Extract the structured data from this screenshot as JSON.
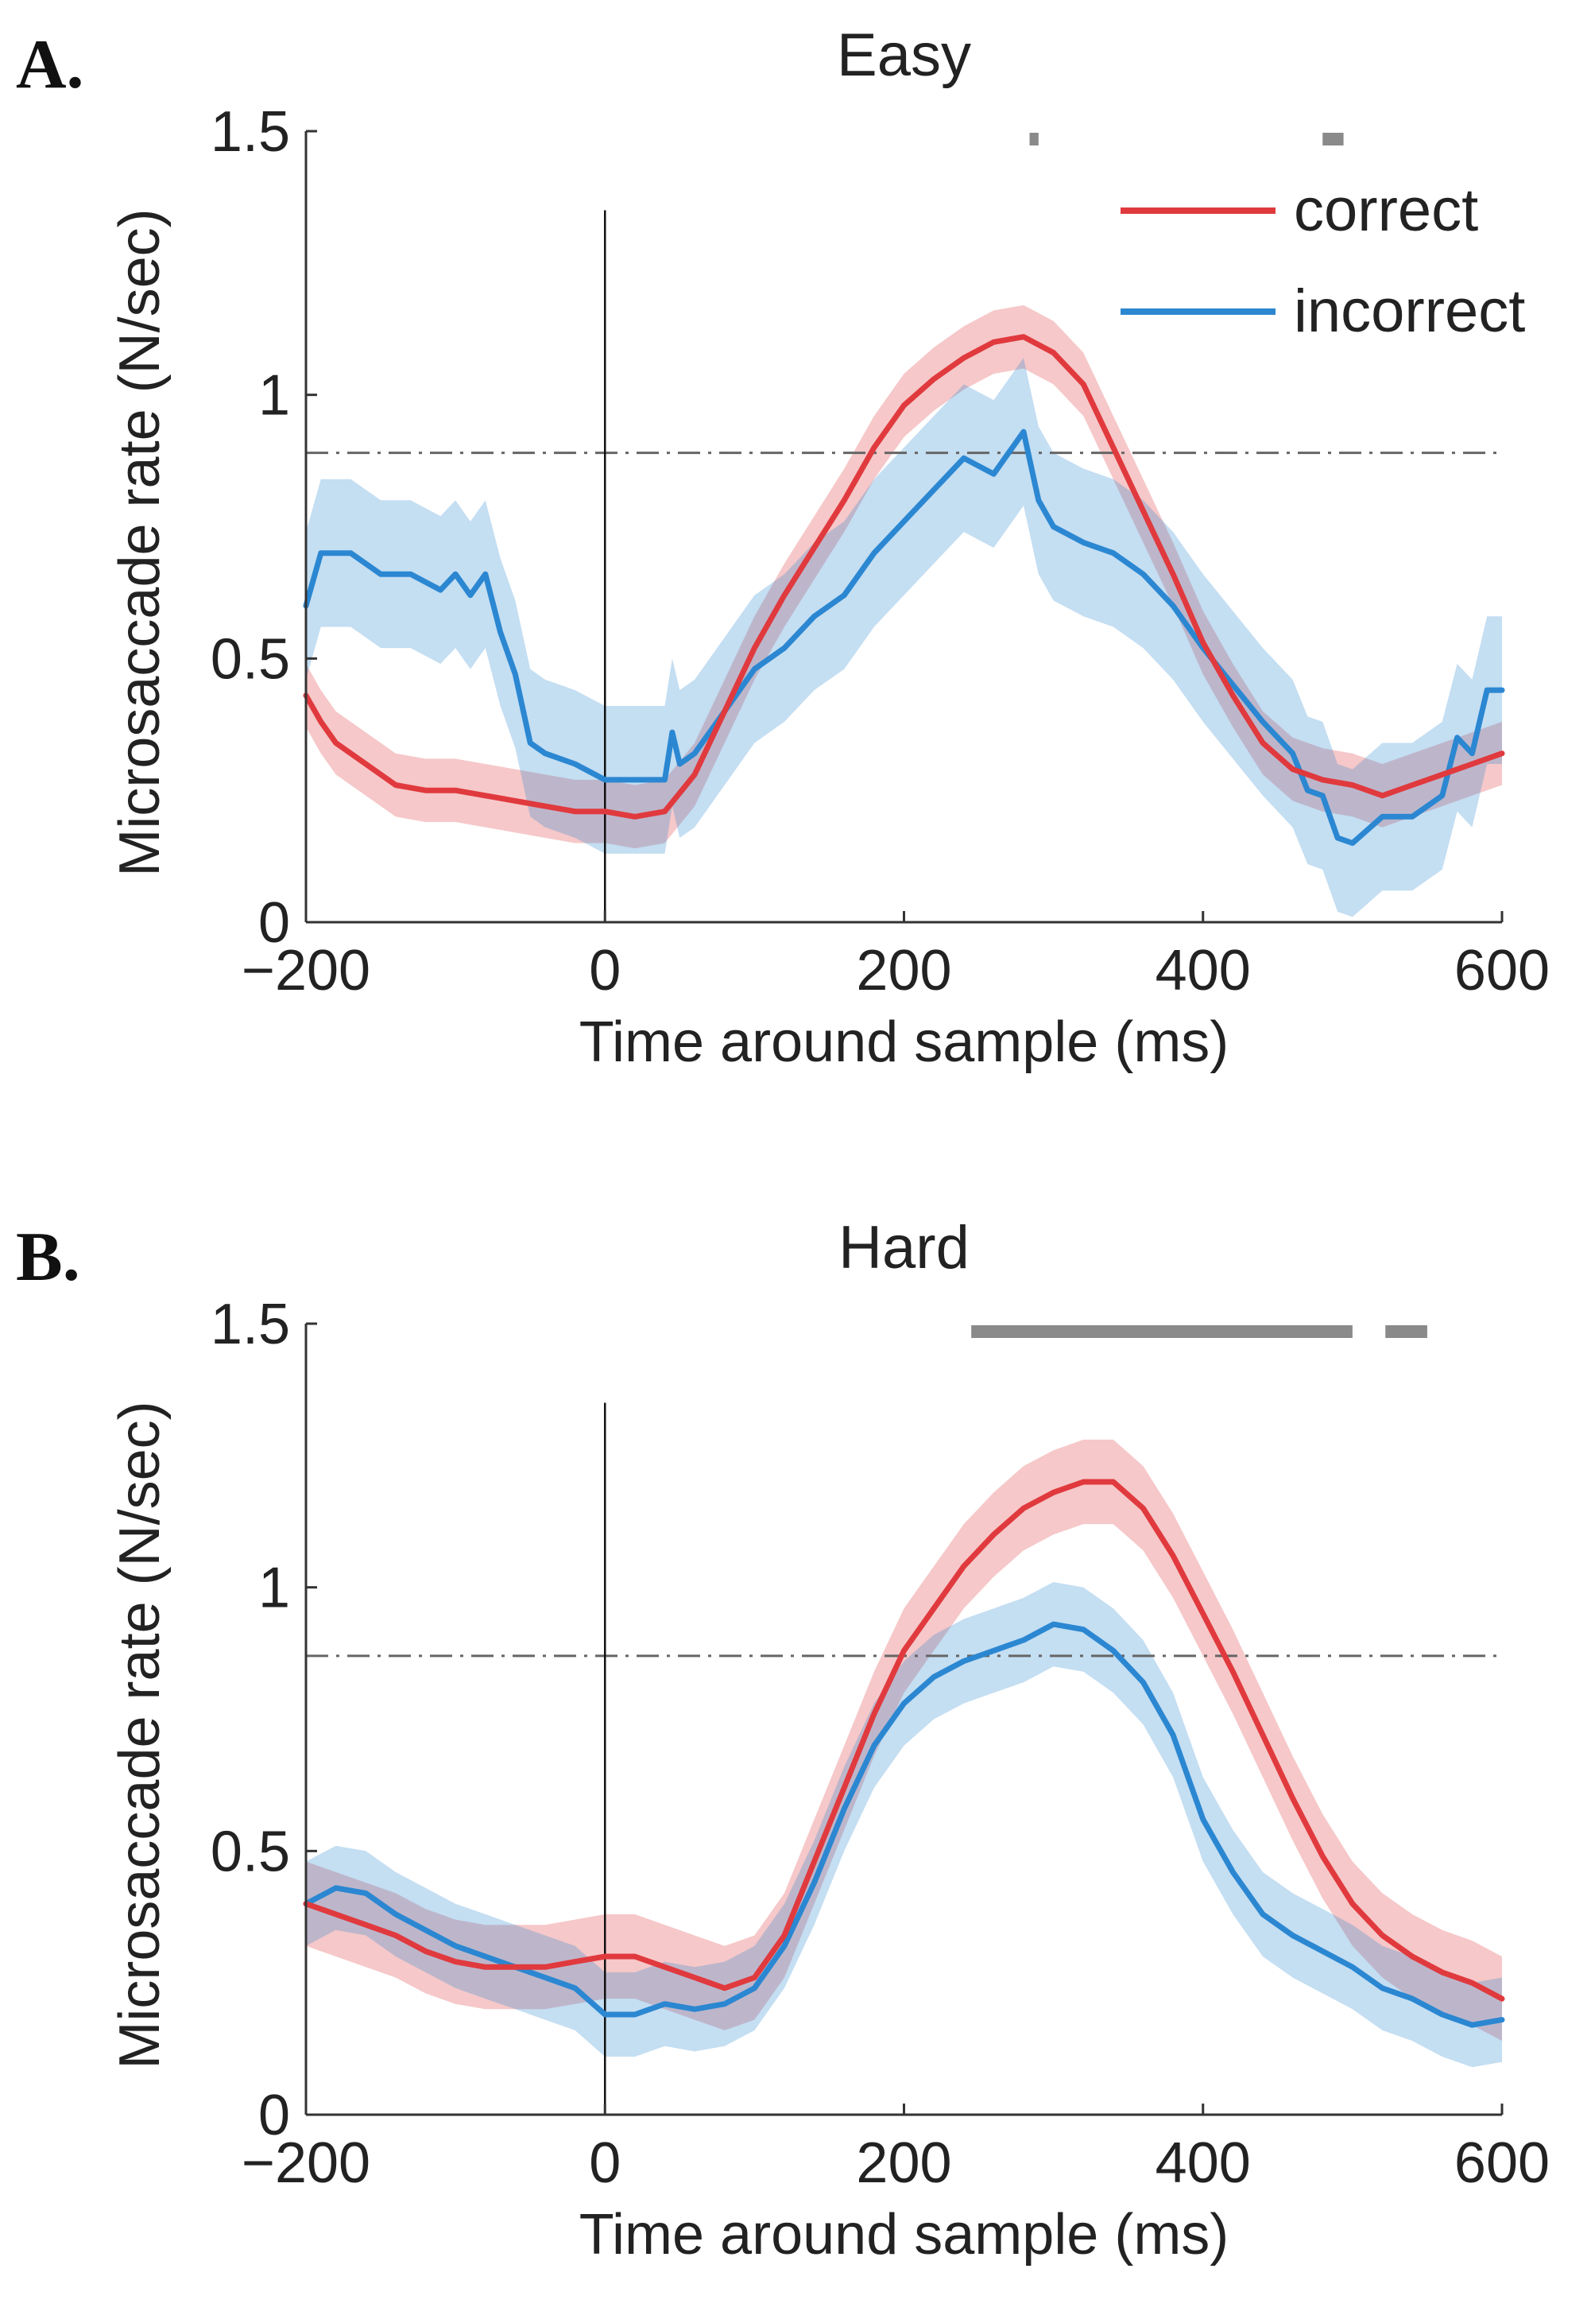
{
  "colors": {
    "correct": "#e03a3e",
    "incorrect": "#2b87d1",
    "significance": "#8a8a8a",
    "reference": "#666666",
    "axis": "#333333"
  },
  "chart_data": [
    {
      "panel_letter": "A.",
      "type": "line",
      "title": "Easy",
      "xlabel": "Time around sample (ms)",
      "ylabel": "Microsaccade rate (N/sec)",
      "xlim": [
        -200,
        600
      ],
      "ylim": [
        0,
        1.5
      ],
      "xticks": [
        -200,
        0,
        200,
        400,
        600
      ],
      "xtick_labels": [
        "−200",
        "0",
        "200",
        "400",
        "600"
      ],
      "yticks": [
        0,
        0.5,
        1,
        1.5
      ],
      "ytick_labels": [
        "0",
        "0.5",
        "1",
        "1.5"
      ],
      "reference_line_y": 0.89,
      "stimulus_line_x": 0,
      "significance_bars": [
        [
          284,
          290
        ],
        [
          480,
          494
        ]
      ],
      "legend": {
        "location": "top-right",
        "entries": [
          "correct",
          "incorrect"
        ]
      },
      "series": [
        {
          "name": "correct",
          "x": [
            -200,
            -190,
            -180,
            -160,
            -140,
            -120,
            -100,
            -80,
            -60,
            -40,
            -20,
            0,
            20,
            40,
            60,
            80,
            100,
            120,
            140,
            160,
            180,
            200,
            220,
            240,
            260,
            280,
            300,
            320,
            340,
            360,
            380,
            400,
            420,
            440,
            460,
            480,
            500,
            520,
            540,
            560,
            580,
            600
          ],
          "y": [
            0.43,
            0.38,
            0.34,
            0.3,
            0.26,
            0.25,
            0.25,
            0.24,
            0.23,
            0.22,
            0.21,
            0.21,
            0.2,
            0.21,
            0.28,
            0.4,
            0.52,
            0.62,
            0.71,
            0.8,
            0.9,
            0.98,
            1.03,
            1.07,
            1.1,
            1.11,
            1.08,
            1.02,
            0.9,
            0.78,
            0.66,
            0.53,
            0.43,
            0.34,
            0.29,
            0.27,
            0.26,
            0.24,
            0.26,
            0.28,
            0.3,
            0.32
          ],
          "band_half_width": 0.06
        },
        {
          "name": "incorrect",
          "x": [
            -200,
            -190,
            -180,
            -170,
            -150,
            -130,
            -110,
            -100,
            -90,
            -80,
            -70,
            -60,
            -50,
            -40,
            -20,
            0,
            20,
            40,
            45,
            50,
            60,
            80,
            100,
            120,
            140,
            160,
            180,
            200,
            220,
            240,
            260,
            280,
            290,
            300,
            320,
            340,
            360,
            380,
            400,
            420,
            440,
            460,
            470,
            480,
            490,
            500,
            520,
            540,
            560,
            570,
            580,
            590,
            600
          ],
          "y": [
            0.6,
            0.7,
            0.7,
            0.7,
            0.66,
            0.66,
            0.63,
            0.66,
            0.62,
            0.66,
            0.55,
            0.47,
            0.34,
            0.32,
            0.3,
            0.27,
            0.27,
            0.27,
            0.36,
            0.3,
            0.32,
            0.4,
            0.48,
            0.52,
            0.58,
            0.62,
            0.7,
            0.76,
            0.82,
            0.88,
            0.85,
            0.93,
            0.8,
            0.75,
            0.72,
            0.7,
            0.66,
            0.6,
            0.52,
            0.45,
            0.38,
            0.32,
            0.25,
            0.24,
            0.16,
            0.15,
            0.2,
            0.2,
            0.24,
            0.35,
            0.32,
            0.44,
            0.44
          ],
          "band_half_width": 0.14
        }
      ]
    },
    {
      "panel_letter": "B.",
      "type": "line",
      "title": "Hard",
      "xlabel": "Time around sample (ms)",
      "ylabel": "Microsaccade rate (N/sec)",
      "xlim": [
        -200,
        600
      ],
      "ylim": [
        0,
        1.5
      ],
      "xticks": [
        -200,
        0,
        200,
        400,
        600
      ],
      "xtick_labels": [
        "−200",
        "0",
        "200",
        "400",
        "600"
      ],
      "yticks": [
        0,
        0.5,
        1,
        1.5
      ],
      "ytick_labels": [
        "0",
        "0.5",
        "1",
        "1.5"
      ],
      "reference_line_y": 0.87,
      "stimulus_line_x": 0,
      "significance_bars": [
        [
          245,
          500
        ],
        [
          522,
          550
        ]
      ],
      "series": [
        {
          "name": "correct",
          "x": [
            -200,
            -180,
            -160,
            -140,
            -120,
            -100,
            -80,
            -60,
            -40,
            -20,
            0,
            20,
            40,
            60,
            80,
            100,
            120,
            140,
            160,
            180,
            200,
            220,
            240,
            260,
            280,
            300,
            320,
            340,
            360,
            380,
            400,
            420,
            440,
            460,
            480,
            500,
            520,
            540,
            560,
            580,
            600
          ],
          "y": [
            0.4,
            0.38,
            0.36,
            0.34,
            0.31,
            0.29,
            0.28,
            0.28,
            0.28,
            0.29,
            0.3,
            0.3,
            0.28,
            0.26,
            0.24,
            0.26,
            0.34,
            0.48,
            0.62,
            0.76,
            0.88,
            0.96,
            1.04,
            1.1,
            1.15,
            1.18,
            1.2,
            1.2,
            1.15,
            1.06,
            0.95,
            0.84,
            0.72,
            0.6,
            0.49,
            0.4,
            0.34,
            0.3,
            0.27,
            0.25,
            0.22
          ],
          "band_half_width": 0.08
        },
        {
          "name": "incorrect",
          "x": [
            -200,
            -180,
            -160,
            -140,
            -120,
            -100,
            -80,
            -60,
            -40,
            -20,
            0,
            20,
            40,
            60,
            80,
            100,
            120,
            140,
            160,
            180,
            200,
            220,
            240,
            260,
            280,
            300,
            320,
            340,
            360,
            380,
            400,
            420,
            440,
            460,
            480,
            500,
            520,
            540,
            560,
            580,
            600
          ],
          "y": [
            0.4,
            0.43,
            0.42,
            0.38,
            0.35,
            0.32,
            0.3,
            0.28,
            0.26,
            0.24,
            0.19,
            0.19,
            0.21,
            0.2,
            0.21,
            0.24,
            0.32,
            0.44,
            0.58,
            0.7,
            0.78,
            0.83,
            0.86,
            0.88,
            0.9,
            0.93,
            0.92,
            0.88,
            0.82,
            0.72,
            0.56,
            0.46,
            0.38,
            0.34,
            0.31,
            0.28,
            0.24,
            0.22,
            0.19,
            0.17,
            0.18
          ],
          "band_half_width": 0.08
        }
      ]
    }
  ]
}
